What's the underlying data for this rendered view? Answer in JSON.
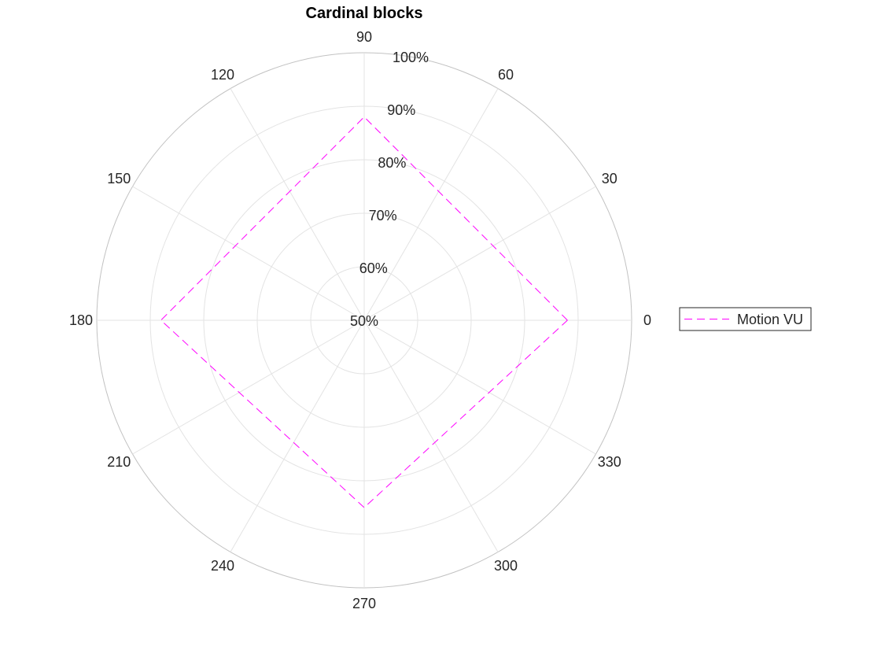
{
  "chart_data": {
    "type": "polar-line",
    "title": "Cardinal blocks",
    "theta_unit": "degrees",
    "theta_ticks": [
      "0",
      "30",
      "60",
      "90",
      "120",
      "150",
      "180",
      "210",
      "240",
      "270",
      "300",
      "330"
    ],
    "r_ticks": [
      "50%",
      "60%",
      "70%",
      "80%",
      "90%",
      "100%"
    ],
    "rlim": [
      50,
      100
    ],
    "r_unit": "%",
    "grid": true,
    "legend_position": "right",
    "series": [
      {
        "name": "Motion VU",
        "color": "#ff00ff",
        "line_style": "dashed",
        "points": [
          {
            "theta": 0,
            "r": 88
          },
          {
            "theta": 90,
            "r": 88
          },
          {
            "theta": 180,
            "r": 88
          },
          {
            "theta": 270,
            "r": 85
          },
          {
            "theta": 360,
            "r": 88
          }
        ]
      }
    ]
  },
  "colors": {
    "grid": "#e3e3e3",
    "outer_circle": "#c2c2c2",
    "text": "#262626",
    "legend_border": "#262626"
  }
}
